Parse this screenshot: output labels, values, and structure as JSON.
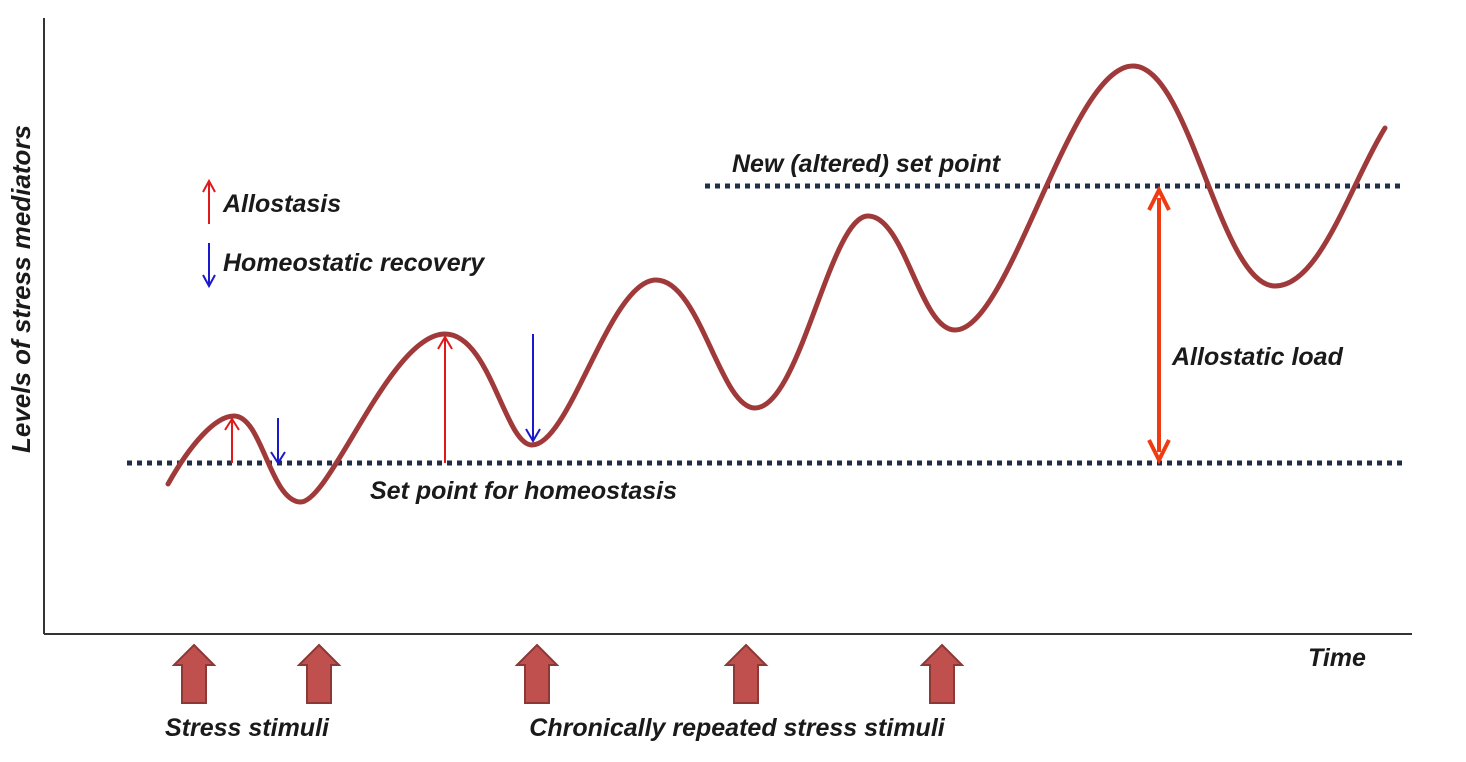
{
  "axes": {
    "y_label": "Levels of stress mediators",
    "x_label": "Time"
  },
  "legend": {
    "allostasis": "Allostasis",
    "homeostatic_recovery": "Homeostatic recovery"
  },
  "annotations": {
    "new_set_point": "New (altered) set point",
    "set_point": "Set point for homeostasis",
    "allostatic_load": "Allostatic load"
  },
  "stimuli": {
    "stress_stimuli": "Stress stimuli",
    "chronic_stimuli": "Chronically repeated stress stimuli"
  },
  "colors": {
    "curve": "#a03a3a",
    "allostasis_arrow": "#e0191b",
    "recovery_arrow": "#1a1acc",
    "load_arrow": "#f03b12",
    "dotted_line": "#1f2f4a",
    "stimulus_arrow_fill": "#c0504d",
    "stimulus_arrow_stroke": "#8c3836"
  }
}
